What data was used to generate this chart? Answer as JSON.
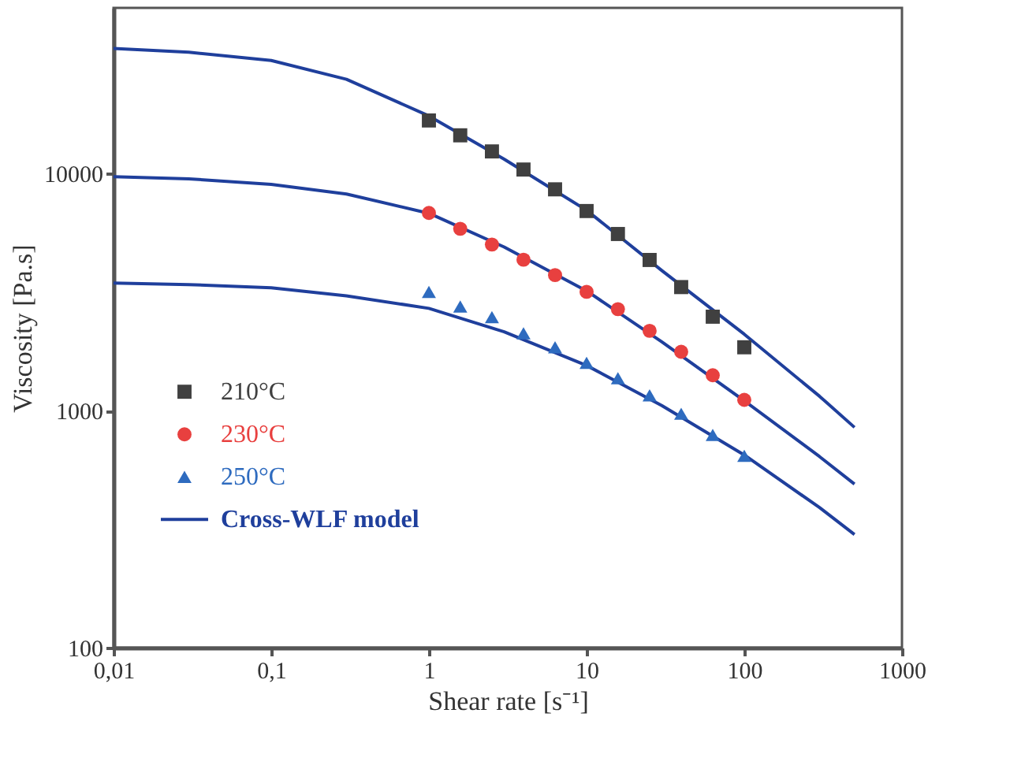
{
  "chart_data": {
    "type": "scatter",
    "xlabel": "Shear rate [s⁻¹]",
    "ylabel": "Viscosity [Pa.s]",
    "log": "xy",
    "grid": false,
    "legend": "bottom left",
    "xlim": [
      0.01,
      1000
    ],
    "xticks": [
      {
        "value": 0.01,
        "label": "0,01"
      },
      {
        "value": 0.1,
        "label": "0,1"
      },
      1,
      10,
      100,
      1000
    ],
    "ylim": [
      100,
      50000
    ],
    "yticks": [
      100,
      1000,
      10000
    ],
    "series": [
      {
        "name": "210°C",
        "marker": "square",
        "color": "#404040",
        "x": [
          1,
          1.58,
          2.51,
          3.98,
          6.31,
          10,
          15.8,
          25.1,
          39.8,
          63.1,
          100
        ],
        "values": [
          16750,
          14500,
          12400,
          10400,
          8580,
          6950,
          5560,
          4320,
          3320,
          2490,
          1850
        ]
      },
      {
        "name": "230°C",
        "marker": "circle",
        "color": "#e8403f",
        "x": [
          1,
          1.58,
          2.51,
          3.98,
          6.31,
          10,
          15.8,
          25.1,
          39.8,
          63.1,
          100
        ],
        "values": [
          6820,
          5850,
          5020,
          4330,
          3730,
          3170,
          2680,
          2170,
          1770,
          1410,
          1110
        ]
      },
      {
        "name": "250°C",
        "marker": "triangle",
        "color": "#2e6bbf",
        "x": [
          1,
          1.58,
          2.51,
          3.98,
          6.31,
          10,
          15.8,
          25.1,
          39.8,
          63.1,
          100
        ],
        "values": [
          3170,
          2750,
          2480,
          2120,
          1850,
          1590,
          1370,
          1160,
          970,
          790,
          645
        ]
      },
      {
        "name": "Cross-WLF model",
        "type": "line",
        "color": "#1f3f9c",
        "x": [
          0.01,
          0.03,
          0.1,
          0.3,
          1,
          3,
          10,
          30,
          100,
          300,
          500
        ],
        "values": [
          33700,
          32500,
          30000,
          25000,
          17500,
          11500,
          7000,
          3900,
          2100,
          1150,
          850
        ]
      },
      {
        "type": "line",
        "color": "#1f3f9c",
        "x": [
          0.01,
          0.03,
          0.1,
          0.3,
          1,
          3,
          10,
          30,
          100,
          300,
          500
        ],
        "values": [
          9700,
          9500,
          9000,
          8200,
          6800,
          4900,
          3200,
          1950,
          1100,
          640,
          490
        ]
      },
      {
        "type": "line",
        "color": "#1f3f9c",
        "x": [
          0.01,
          0.03,
          0.1,
          0.3,
          1,
          3,
          10,
          30,
          100,
          300,
          500
        ],
        "values": [
          3450,
          3400,
          3300,
          3050,
          2700,
          2150,
          1550,
          1050,
          650,
          390,
          300
        ]
      }
    ]
  }
}
